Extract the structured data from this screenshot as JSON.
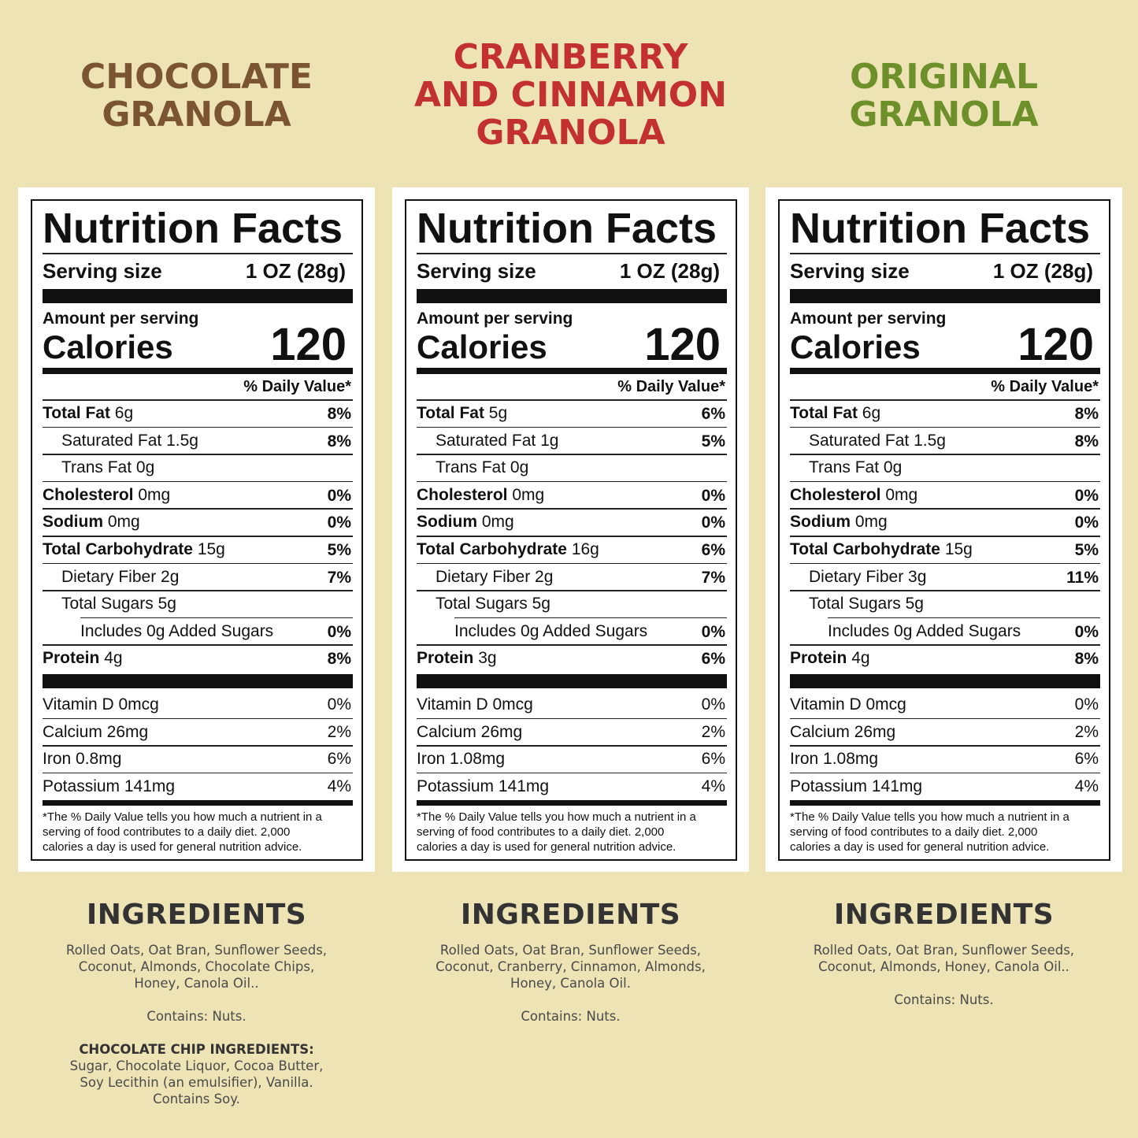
{
  "products": [
    {
      "title": [
        "CHOCOLATE",
        "GRANOLA"
      ],
      "color": "#7b5533",
      "label": {
        "heading": "Nutrition Facts",
        "serving_label": "Serving size",
        "serving_value": "1 OZ (28g)",
        "amount_per_serving": "Amount per serving",
        "calories_label": "Calories",
        "calories_value": "120",
        "daily_value_header": "% Daily Value*",
        "rows": [
          {
            "name": "Total Fat",
            "amount": "6g",
            "dv": "8%",
            "indent": 0
          },
          {
            "name": "Saturated Fat",
            "amount": "1.5g",
            "dv": "8%",
            "indent": 1
          },
          {
            "name": "Trans Fat",
            "amount": "0g",
            "indent": 1
          },
          {
            "name": "Cholesterol",
            "amount": "0mg",
            "dv": "0%",
            "indent": 0
          },
          {
            "name": "Sodium",
            "amount": "0mg",
            "dv": "0%",
            "indent": 0
          },
          {
            "name": "Total Carbohydrate",
            "amount": "15g",
            "dv": "5%",
            "indent": 0
          },
          {
            "name": "Dietary Fiber",
            "amount": "2g",
            "dv": "7%",
            "indent": 1
          },
          {
            "name": "Total Sugars",
            "amount": "5g",
            "indent": 1
          },
          {
            "name": "Includes 0g Added Sugars",
            "dv": "0%",
            "indent": 2
          },
          {
            "name": "Protein",
            "amount": "4g",
            "dv": "8%",
            "indent": 0
          }
        ],
        "vitamins": [
          {
            "name": "Vitamin D 0mcg",
            "dv": "0%"
          },
          {
            "name": "Calcium 26mg",
            "dv": "2%"
          },
          {
            "name": "Iron 0.8mg",
            "dv": "6%"
          },
          {
            "name": "Potassium 141mg",
            "dv": "4%"
          }
        ],
        "footnote": [
          "*The % Daily Value tells you how much a nutrient in a",
          "serving of food contributes to a daily diet. 2,000",
          "calories a day is used for general nutrition advice."
        ]
      },
      "ingredients": {
        "heading": "INGREDIENTS",
        "lines": [
          "Rolled Oats, Oat Bran, Sunflower Seeds,",
          "Coconut, Almonds, Chocolate Chips,",
          "Honey, Canola Oil.."
        ],
        "contains": "Contains: Nuts.",
        "extra": {
          "heading": "CHOCOLATE CHIP INGREDIENTS:",
          "lines": [
            "Sugar, Chocolate Liquor, Cocoa Butter,",
            "Soy Lecithin (an emulsifier), Vanilla.",
            "Contains Soy."
          ]
        }
      }
    },
    {
      "title": [
        "CRANBERRY",
        "AND CINNAMON",
        "GRANOLA"
      ],
      "color": "#c2302f",
      "label": {
        "heading": "Nutrition Facts",
        "serving_label": "Serving size",
        "serving_value": "1 OZ (28g)",
        "amount_per_serving": "Amount per serving",
        "calories_label": "Calories",
        "calories_value": "120",
        "daily_value_header": "% Daily Value*",
        "rows": [
          {
            "name": "Total Fat",
            "amount": "5g",
            "dv": "6%",
            "indent": 0
          },
          {
            "name": "Saturated Fat",
            "amount": "1g",
            "dv": "5%",
            "indent": 1
          },
          {
            "name": "Trans Fat",
            "amount": "0g",
            "indent": 1
          },
          {
            "name": "Cholesterol",
            "amount": "0mg",
            "dv": "0%",
            "indent": 0
          },
          {
            "name": "Sodium",
            "amount": "0mg",
            "dv": "0%",
            "indent": 0
          },
          {
            "name": "Total Carbohydrate",
            "amount": "16g",
            "dv": "6%",
            "indent": 0
          },
          {
            "name": "Dietary Fiber",
            "amount": "2g",
            "dv": "7%",
            "indent": 1
          },
          {
            "name": "Total Sugars",
            "amount": "5g",
            "indent": 1
          },
          {
            "name": "Includes 0g Added Sugars",
            "dv": "0%",
            "indent": 2
          },
          {
            "name": "Protein",
            "amount": "3g",
            "dv": "6%",
            "indent": 0
          }
        ],
        "vitamins": [
          {
            "name": "Vitamin D 0mcg",
            "dv": "0%"
          },
          {
            "name": "Calcium 26mg",
            "dv": "2%"
          },
          {
            "name": "Iron 1.08mg",
            "dv": "6%"
          },
          {
            "name": "Potassium 141mg",
            "dv": "4%"
          }
        ],
        "footnote": [
          "*The % Daily Value tells you how much a nutrient in a",
          "serving of food contributes to a daily diet. 2,000",
          "calories a day is used for general nutrition advice."
        ]
      },
      "ingredients": {
        "heading": "INGREDIENTS",
        "lines": [
          "Rolled Oats, Oat Bran, Sunflower Seeds,",
          "Coconut, Cranberry, Cinnamon, Almonds,",
          "Honey, Canola Oil."
        ],
        "contains": "Contains: Nuts."
      }
    },
    {
      "title": [
        "ORIGINAL",
        "GRANOLA"
      ],
      "color": "#6e902b",
      "label": {
        "heading": "Nutrition Facts",
        "serving_label": "Serving size",
        "serving_value": "1 OZ (28g)",
        "amount_per_serving": "Amount per serving",
        "calories_label": "Calories",
        "calories_value": "120",
        "daily_value_header": "% Daily Value*",
        "rows": [
          {
            "name": "Total Fat",
            "amount": "6g",
            "dv": "8%",
            "indent": 0
          },
          {
            "name": "Saturated Fat",
            "amount": "1.5g",
            "dv": "8%",
            "indent": 1
          },
          {
            "name": "Trans Fat",
            "amount": "0g",
            "indent": 1
          },
          {
            "name": "Cholesterol",
            "amount": "0mg",
            "dv": "0%",
            "indent": 0
          },
          {
            "name": "Sodium",
            "amount": "0mg",
            "dv": "0%",
            "indent": 0
          },
          {
            "name": "Total Carbohydrate",
            "amount": "15g",
            "dv": "5%",
            "indent": 0
          },
          {
            "name": "Dietary Fiber",
            "amount": "3g",
            "dv": "11%",
            "indent": 1
          },
          {
            "name": "Total Sugars",
            "amount": "5g",
            "indent": 1
          },
          {
            "name": "Includes 0g Added Sugars",
            "dv": "0%",
            "indent": 2
          },
          {
            "name": "Protein",
            "amount": "4g",
            "dv": "8%",
            "indent": 0
          }
        ],
        "vitamins": [
          {
            "name": "Vitamin D 0mcg",
            "dv": "0%"
          },
          {
            "name": "Calcium 26mg",
            "dv": "2%"
          },
          {
            "name": "Iron 1.08mg",
            "dv": "6%"
          },
          {
            "name": "Potassium 141mg",
            "dv": "4%"
          }
        ],
        "footnote": [
          "*The % Daily Value tells you how much a nutrient in a",
          "serving of food contributes to a daily diet. 2,000",
          "calories a day is used for general nutrition advice."
        ]
      },
      "ingredients": {
        "heading": "INGREDIENTS",
        "lines": [
          "Rolled Oats, Oat Bran, Sunflower Seeds,",
          "Coconut, Almonds, Honey, Canola Oil.."
        ],
        "contains": "Contains: Nuts."
      }
    }
  ]
}
